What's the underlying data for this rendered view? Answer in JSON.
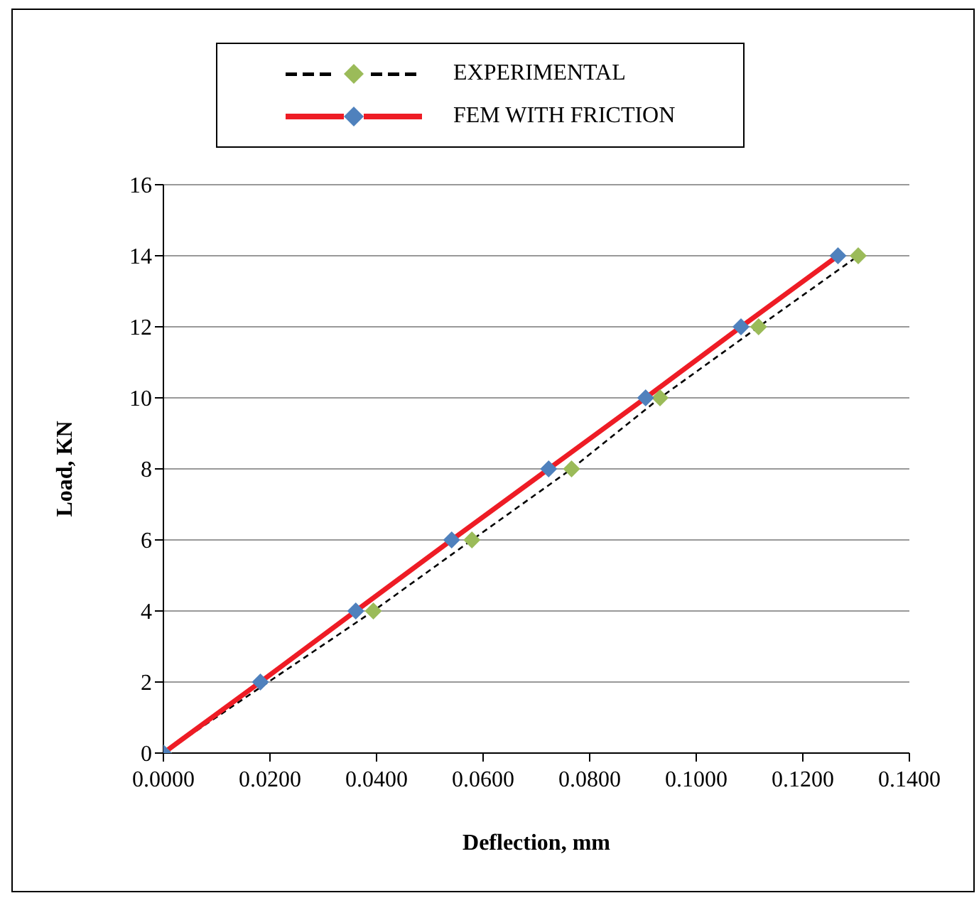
{
  "chart_data": {
    "type": "line",
    "xlabel": "Deflection, mm",
    "ylabel": "Load, KN",
    "xlim": [
      0,
      0.14
    ],
    "xticks": [
      {
        "value": 0,
        "label": "0.0000"
      },
      {
        "value": 0.02,
        "label": "0.0200"
      },
      {
        "value": 0.04,
        "label": "0.0400"
      },
      {
        "value": 0.06,
        "label": "0.0600"
      },
      {
        "value": 0.08,
        "label": "0.0800"
      },
      {
        "value": 0.1,
        "label": "0.1000"
      },
      {
        "value": 0.12,
        "label": "0.1200"
      },
      {
        "value": 0.14,
        "label": "0.1400"
      }
    ],
    "ylim": [
      0,
      16
    ],
    "yticks": [
      0,
      2,
      4,
      6,
      8,
      10,
      12,
      14,
      16
    ],
    "grid": "y",
    "legend": "top",
    "marker": "diamond",
    "series": [
      {
        "name": "EXPERIMENTAL",
        "color": "#000000",
        "line_style": "dashed",
        "colors": [
          "#9bbb59",
          null,
          "#9bbb59",
          "#9bbb59",
          "#9bbb59",
          "#9bbb59",
          "#9bbb59",
          "#9bbb59"
        ],
        "x": [
          0,
          0.0182,
          0.0394,
          0.0579,
          0.0766,
          0.0932,
          0.1117,
          0.1304
        ],
        "values": [
          0,
          null,
          4,
          6,
          8,
          10,
          12,
          14
        ]
      },
      {
        "name": "FEM WITH FRICTION",
        "color": "#ee1c25",
        "line_style": "solid",
        "colors": [
          "#4f81bd",
          "#4f81bd",
          "#4f81bd",
          "#4f81bd",
          "#4f81bd",
          "#4f81bd",
          "#4f81bd",
          "#4f81bd"
        ],
        "x": [
          0,
          0.0182,
          0.0361,
          0.0541,
          0.0723,
          0.0905,
          0.1084,
          0.1266
        ],
        "values": [
          0,
          2,
          4,
          6,
          8,
          10,
          12,
          14
        ]
      }
    ]
  }
}
